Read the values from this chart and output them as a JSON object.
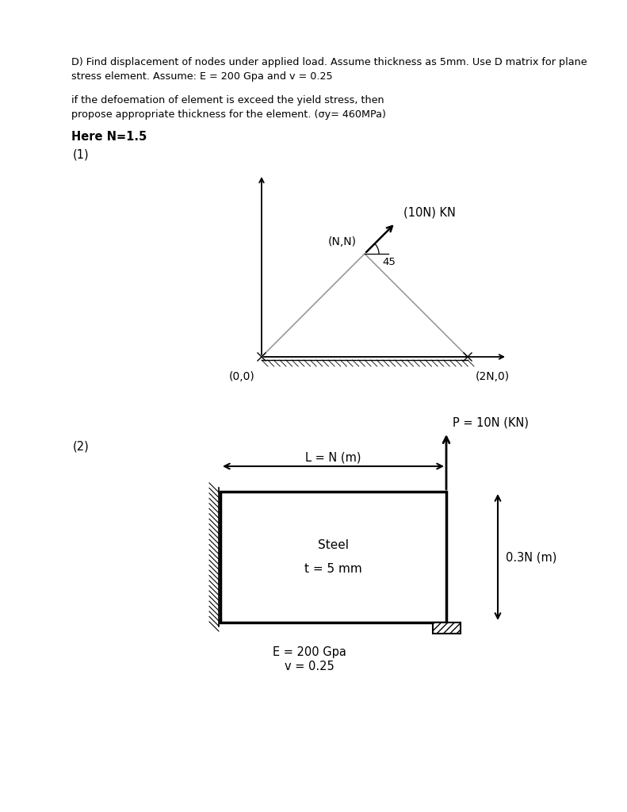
{
  "bg_color": "#ffffff",
  "title_line1": "D) Find displacement of nodes under applied load. Assume thickness as 5mm. Use D matrix for plane",
  "title_line2": "stress element. Assume: E = 200 Gpa and v = 0.25",
  "body_line1": "if the defoemation of element is exceed the yield stress, then",
  "body_line2": "propose appropriate thickness for the element. (σy= 460MPa)",
  "bold_text": "Here N=1.5",
  "label1": "(1)",
  "label2": "(2)",
  "tri_label0": "(0,0)",
  "tri_label1": "(N,N)",
  "tri_label2": "(2N,0)",
  "force_label": "(10N) KN",
  "angle_label": "45",
  "steel_label1": "Steel",
  "steel_label2": "t = 5 mm",
  "E_label1": "E = 200 Gpa",
  "E_label2": "v = 0.25",
  "L_label": "L = N (m)",
  "P_label": "P = 10N (KN)",
  "h_label": "0.3N (m)"
}
